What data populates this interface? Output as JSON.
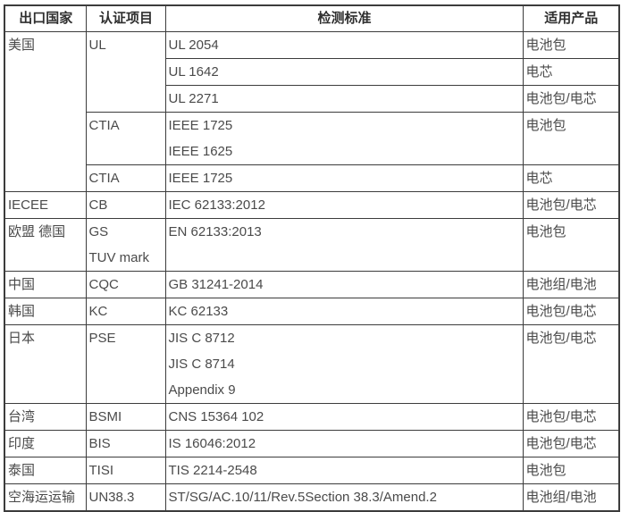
{
  "colors": {
    "border": "#3c3c3c",
    "body_text": "#4a4a4a",
    "header_text": "#2f2f2f",
    "background": "#ffffff"
  },
  "table": {
    "headers": [
      "出口国家",
      "认证项目",
      "检测标准",
      "适用产品"
    ],
    "rows": [
      {
        "country": "美国",
        "cert": "UL",
        "standard": "UL 2054",
        "product": "电池包"
      },
      {
        "standard": "UL 1642",
        "product": "电芯"
      },
      {
        "standard": "UL 2271",
        "product": "电池包/电芯"
      },
      {
        "cert": "CTIA",
        "standard_lines": [
          "IEEE 1725",
          "IEEE 1625"
        ],
        "product": "电池包"
      },
      {
        "cert": "CTIA",
        "standard": "IEEE 1725",
        "product": "电芯"
      },
      {
        "country": "IECEE",
        "cert": "CB",
        "standard": "IEC 62133:2012",
        "product": "电池包/电芯"
      },
      {
        "country": "欧盟  德国",
        "cert_lines": [
          "GS",
          "TUV mark"
        ],
        "standard": "EN 62133:2013",
        "product": "电池包"
      },
      {
        "country": "中国",
        "cert": "CQC",
        "standard": "GB 31241-2014",
        "product": "电池组/电池"
      },
      {
        "country": "韩国",
        "cert": "KC",
        "standard": "KC 62133",
        "product": "电池包/电芯"
      },
      {
        "country": "日本",
        "cert": "PSE",
        "standard_lines": [
          "JIS C 8712",
          "JIS C 8714",
          "Appendix 9"
        ],
        "product": "电池包/电芯"
      },
      {
        "country": "台湾",
        "cert": "BSMI",
        "standard": "CNS 15364 102",
        "product": "电池包/电芯"
      },
      {
        "country": "印度",
        "cert": "BIS",
        "standard": "IS 16046:2012",
        "product": "电池包/电芯"
      },
      {
        "country": "泰国",
        "cert": "TISI",
        "standard": "TIS 2214-2548",
        "product": "电池包"
      },
      {
        "country": "空海运运输",
        "cert": "UN38.3",
        "standard": "ST/SG/AC.10/11/Rev.5Section 38.3/Amend.2",
        "product": "电池组/电池"
      }
    ]
  }
}
